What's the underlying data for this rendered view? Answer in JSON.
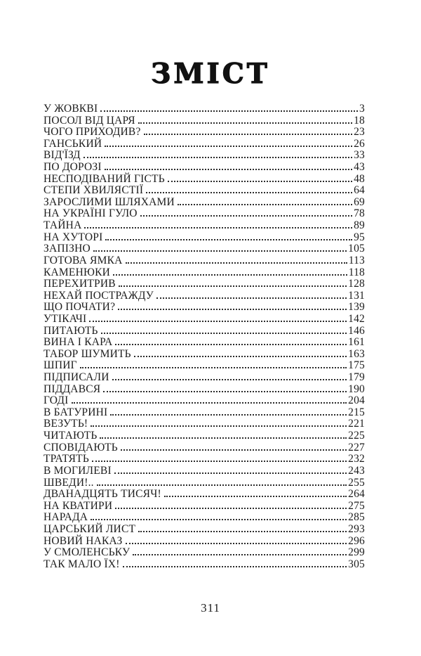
{
  "page": {
    "title": "ЗМІСТ",
    "folio": "311",
    "entries": [
      {
        "title": "У ЖОВКВІ",
        "page": "3"
      },
      {
        "title": "ПОСОЛ ВІД ЦАРЯ",
        "page": "18"
      },
      {
        "title": "ЧОГО ПРИХОДИВ?",
        "page": "23"
      },
      {
        "title": "ГАНСЬКИЙ",
        "page": "26"
      },
      {
        "title": "ВІД'ЇЗД",
        "page": "33"
      },
      {
        "title": "ПО ДОРОЗІ",
        "page": "43"
      },
      {
        "title": "НЕСПОДІВАНИЙ ГІСТЬ",
        "page": "48"
      },
      {
        "title": "СТЕПИ ХВИЛЯСТІЇ",
        "page": "64"
      },
      {
        "title": "ЗАРОСЛИМИ ШЛЯХАМИ",
        "page": "69"
      },
      {
        "title": "НА УКРАЇНІ ГУЛО",
        "page": "78"
      },
      {
        "title": "ТАЙНА",
        "page": "89"
      },
      {
        "title": "НА ХУТОРІ",
        "page": "95"
      },
      {
        "title": "ЗАПІЗНО",
        "page": "105"
      },
      {
        "title": "ГОТОВА ЯМКА",
        "page": "113"
      },
      {
        "title": "КАМЕНЮКИ",
        "page": "118"
      },
      {
        "title": "ПЕРЕХИТРИВ",
        "page": "128"
      },
      {
        "title": "НЕХАЙ ПОСТРАЖДУ",
        "page": "131"
      },
      {
        "title": "ЩО ПОЧАТИ?",
        "page": "139"
      },
      {
        "title": "УТІКАЧІ",
        "page": "142"
      },
      {
        "title": "ПИТАЮТЬ",
        "page": "146"
      },
      {
        "title": "ВИНА І КАРА",
        "page": "161"
      },
      {
        "title": "ТАБОР ШУМИТЬ",
        "page": "163"
      },
      {
        "title": "ШПИГ",
        "page": "175"
      },
      {
        "title": "ПІДПИСАЛИ",
        "page": "179"
      },
      {
        "title": "ПІДДАВСЯ",
        "page": "190"
      },
      {
        "title": "ГОДІ",
        "page": "204"
      },
      {
        "title": "В БАТУРИНІ",
        "page": "215"
      },
      {
        "title": "ВЕЗУТЬ!",
        "page": "221"
      },
      {
        "title": "ЧИТАЮТЬ",
        "page": "225"
      },
      {
        "title": "СПОВІДАЮТЬ",
        "page": "227"
      },
      {
        "title": "ТРАТЯТЬ",
        "page": "232"
      },
      {
        "title": "В МОГИЛЕВІ",
        "page": "243"
      },
      {
        "title": "ШВЕДИ!..",
        "page": "255"
      },
      {
        "title": "ДВАНАДЦЯТЬ ТИСЯЧ!",
        "page": "264"
      },
      {
        "title": "НА КВАТИРИ",
        "page": "275"
      },
      {
        "title": "НАРАДА",
        "page": "285"
      },
      {
        "title": "ЦАРСЬКИЙ ЛИСТ",
        "page": "293"
      },
      {
        "title": "НОВИЙ НАКАЗ",
        "page": "296"
      },
      {
        "title": "У СМОЛЕНСЬКУ",
        "page": "299"
      },
      {
        "title": "ТАК МАЛО ЇХ!",
        "page": "305"
      }
    ]
  }
}
